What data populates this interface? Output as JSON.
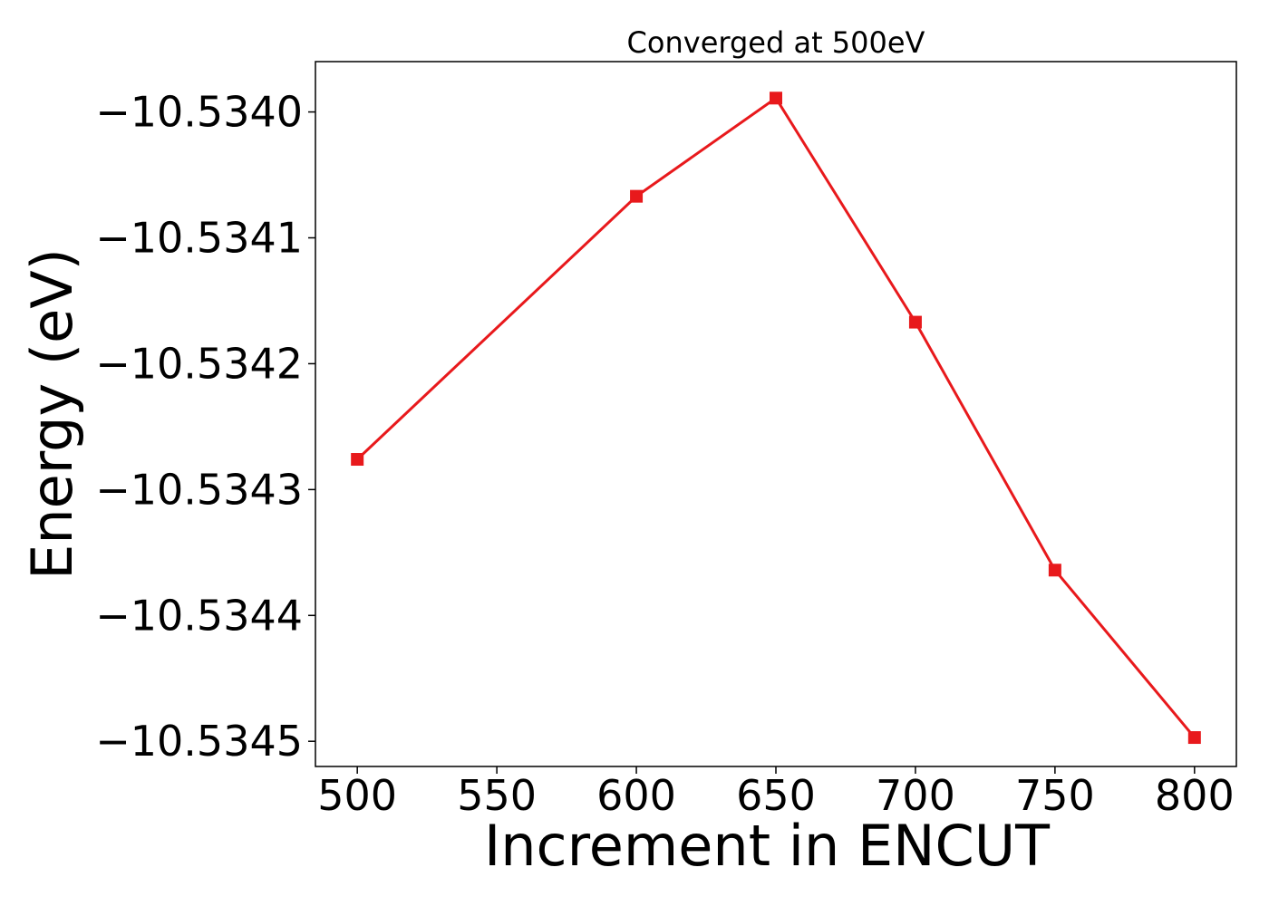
{
  "chart_data": {
    "type": "line",
    "title": "Converged at 500eV",
    "xlabel": "Increment in ENCUT",
    "ylabel": "Energy (eV)",
    "xlim": [
      485,
      815
    ],
    "ylim": [
      -10.53452,
      -10.53396
    ],
    "xticks": [
      500,
      550,
      600,
      650,
      700,
      750,
      800
    ],
    "xtick_labels": [
      "500",
      "550",
      "600",
      "650",
      "700",
      "750",
      "800"
    ],
    "yticks": [
      -10.534,
      -10.5341,
      -10.5342,
      -10.5343,
      -10.5344,
      -10.5345
    ],
    "ytick_labels": [
      "−10.5340",
      "−10.5341",
      "−10.5342",
      "−10.5343",
      "−10.5344",
      "−10.5345"
    ],
    "grid": false,
    "series": [
      {
        "marker": "square",
        "color": "#e8191c",
        "x": [
          500,
          600,
          650,
          700,
          750,
          800
        ],
        "y": [
          -10.534276,
          -10.534067,
          -10.533989,
          -10.534167,
          -10.534364,
          -10.534497
        ]
      }
    ]
  }
}
